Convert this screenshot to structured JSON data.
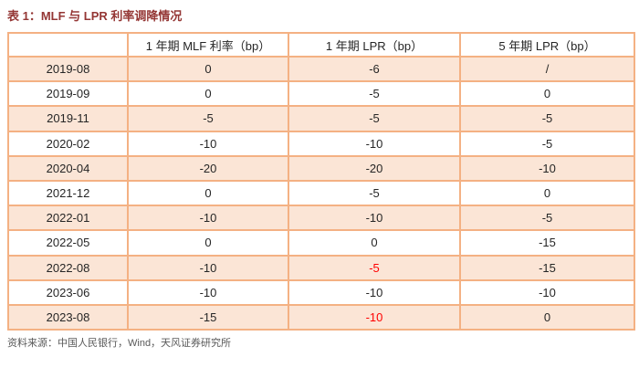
{
  "page": {
    "title": "表 1：MLF 与 LPR 利率调降情况",
    "source_note": "资料来源：中国人民银行，Wind，天风证券研究所"
  },
  "colors": {
    "title": "#943634",
    "table_border": "#f4b183",
    "row_stripe": "#fbe5d6",
    "body_text": "#262626",
    "highlight_value": "#ff0000",
    "source_text": "#595959"
  },
  "table": {
    "headers": [
      "",
      "1 年期 MLF 利率（bp）",
      "1 年期 LPR（bp）",
      "5 年期 LPR（bp）"
    ],
    "rows": [
      {
        "date": "2019-08",
        "values": [
          "0",
          "-6",
          "/"
        ],
        "red": [
          false,
          false,
          false
        ]
      },
      {
        "date": "2019-09",
        "values": [
          "0",
          "-5",
          "0"
        ],
        "red": [
          false,
          false,
          false
        ]
      },
      {
        "date": "2019-11",
        "values": [
          "-5",
          "-5",
          "-5"
        ],
        "red": [
          false,
          false,
          false
        ]
      },
      {
        "date": "2020-02",
        "values": [
          "-10",
          "-10",
          "-5"
        ],
        "red": [
          false,
          false,
          false
        ]
      },
      {
        "date": "2020-04",
        "values": [
          "-20",
          "-20",
          "-10"
        ],
        "red": [
          false,
          false,
          false
        ]
      },
      {
        "date": "2021-12",
        "values": [
          "0",
          "-5",
          "0"
        ],
        "red": [
          false,
          false,
          false
        ]
      },
      {
        "date": "2022-01",
        "values": [
          "-10",
          "-10",
          "-5"
        ],
        "red": [
          false,
          false,
          false
        ]
      },
      {
        "date": "2022-05",
        "values": [
          "0",
          "0",
          "-15"
        ],
        "red": [
          false,
          false,
          false
        ]
      },
      {
        "date": "2022-08",
        "values": [
          "-10",
          "-5",
          "-15"
        ],
        "red": [
          false,
          true,
          false
        ]
      },
      {
        "date": "2023-06",
        "values": [
          "-10",
          "-10",
          "-10"
        ],
        "red": [
          false,
          false,
          false
        ]
      },
      {
        "date": "2023-08",
        "values": [
          "-15",
          "-10",
          "0"
        ],
        "red": [
          false,
          true,
          false
        ]
      }
    ]
  }
}
